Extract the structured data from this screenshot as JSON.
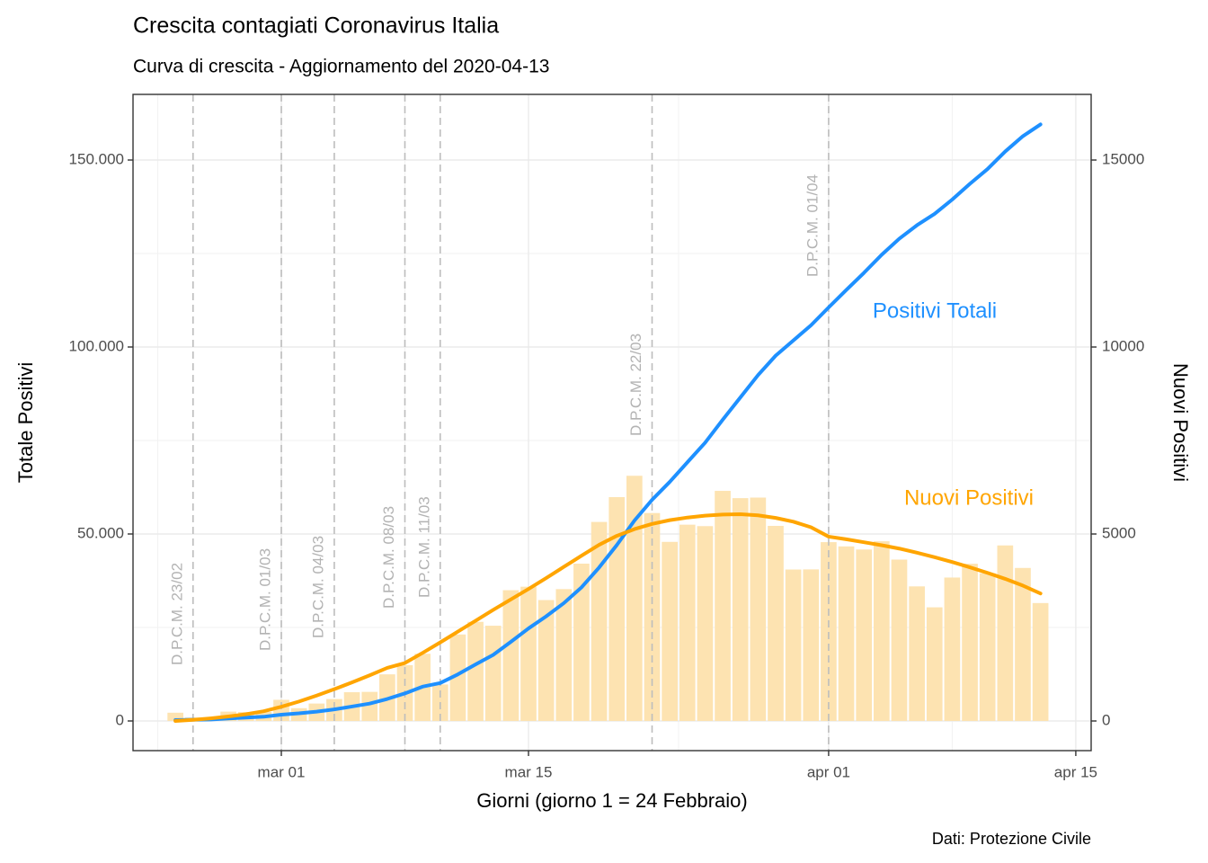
{
  "chart_data": {
    "type": "bar-line",
    "title": "Crescita contagiati Coronavirus Italia",
    "subtitle": "Curva di crescita - Aggiornamento del 2020-04-13",
    "x_label": "Giorni (giorno 1 = 24 Febbraio)",
    "y_label": "Totale Positivi",
    "y2_label": "Nuovi Positivi",
    "caption": "Dati: Protezione Civile",
    "grid": true,
    "x": [
      1,
      2,
      3,
      4,
      5,
      6,
      7,
      8,
      9,
      10,
      11,
      12,
      13,
      14,
      15,
      16,
      17,
      18,
      19,
      20,
      21,
      22,
      23,
      24,
      25,
      26,
      27,
      28,
      29,
      30,
      31,
      32,
      33,
      34,
      35,
      36,
      37,
      38,
      39,
      40,
      41,
      42,
      43,
      44,
      45,
      46,
      47,
      48,
      49,
      50
    ],
    "xlim": [
      -1.4,
      52.87
    ],
    "xticks": [
      {
        "value": 7,
        "label": "mar 01"
      },
      {
        "value": 21,
        "label": "mar 15"
      },
      {
        "value": 38,
        "label": "apr 01"
      },
      {
        "value": 52,
        "label": "apr 15"
      }
    ],
    "ylim": [
      -7933,
      167548
    ],
    "yticks": [
      0,
      {
        "value": 50000,
        "label": "50.000"
      },
      {
        "value": 100000,
        "label": "100.000"
      },
      {
        "value": 150000,
        "label": "150.000"
      }
    ],
    "y2lim": [
      -793,
      16755
    ],
    "y2ticks": [
      0,
      5000,
      10000,
      15000
    ],
    "bars": {
      "color": "#fde3b1",
      "axis": "y2",
      "values": [
        221,
        93,
        78,
        250,
        238,
        240,
        566,
        342,
        466,
        587,
        769,
        778,
        1247,
        1492,
        1797,
        977,
        2313,
        2651,
        2547,
        3497,
        3590,
        3233,
        3526,
        4207,
        5322,
        5986,
        6557,
        5560,
        4789,
        5249,
        5210,
        6153,
        5959,
        5974,
        5217,
        4050,
        4053,
        4782,
        4668,
        4585,
        4805,
        4316,
        3599,
        3039,
        3836,
        4204,
        3951,
        4694,
        4092,
        3153
      ]
    },
    "series": [
      {
        "name": "Positivi Totali",
        "color": "#1e90ff",
        "axis": "y",
        "values": [
          229,
          322,
          400,
          650,
          888,
          1128,
          1694,
          2036,
          2502,
          3089,
          3858,
          4636,
          5883,
          7375,
          9172,
          10149,
          12462,
          15113,
          17660,
          21157,
          24747,
          27980,
          31506,
          35713,
          41035,
          47021,
          53578,
          59138,
          63927,
          69176,
          74386,
          80539,
          86498,
          92472,
          97689,
          101739,
          105792,
          110574,
          115242,
          119827,
          124632,
          128948,
          132547,
          135586,
          139422,
          143626,
          147577,
          152271,
          156363,
          159516
        ]
      },
      {
        "name": "Nuovi Positivi",
        "color": "#ffa500",
        "axis": "y2",
        "values": [
          0,
          30,
          70,
          120,
          180,
          260,
          380,
          520,
          680,
          850,
          1030,
          1220,
          1420,
          1550,
          1820,
          2100,
          2390,
          2680,
          2970,
          3250,
          3530,
          3820,
          4120,
          4420,
          4710,
          4950,
          5130,
          5270,
          5370,
          5440,
          5490,
          5520,
          5530,
          5500,
          5430,
          5330,
          5180,
          4930,
          4860,
          4780,
          4700,
          4610,
          4500,
          4380,
          4250,
          4110,
          3960,
          3800,
          3620,
          3410
        ]
      }
    ],
    "annotations": [
      {
        "label": "D.P.C.M. 23/02",
        "x": 2
      },
      {
        "label": "D.P.C.M. 01/03",
        "x": 7
      },
      {
        "label": "D.P.C.M. 04/03",
        "x": 10
      },
      {
        "label": "D.P.C.M. 08/03",
        "x": 14
      },
      {
        "label": "D.P.C.M. 11/03",
        "x": 16
      },
      {
        "label": "D.P.C.M. 22/03",
        "x": 28
      },
      {
        "label": "D.P.C.M. 01/04",
        "x": 38
      }
    ]
  }
}
